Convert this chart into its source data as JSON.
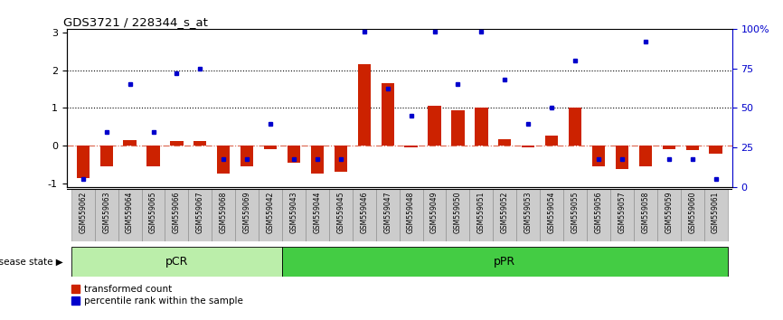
{
  "title": "GDS3721 / 228344_s_at",
  "samples": [
    "GSM559062",
    "GSM559063",
    "GSM559064",
    "GSM559065",
    "GSM559066",
    "GSM559067",
    "GSM559068",
    "GSM559069",
    "GSM559042",
    "GSM559043",
    "GSM559044",
    "GSM559045",
    "GSM559046",
    "GSM559047",
    "GSM559048",
    "GSM559049",
    "GSM559050",
    "GSM559051",
    "GSM559052",
    "GSM559053",
    "GSM559054",
    "GSM559055",
    "GSM559056",
    "GSM559057",
    "GSM559058",
    "GSM559059",
    "GSM559060",
    "GSM559061"
  ],
  "transformed_count": [
    -0.85,
    -0.55,
    0.15,
    -0.55,
    0.12,
    0.12,
    -0.75,
    -0.55,
    -0.08,
    -0.45,
    -0.75,
    -0.7,
    2.15,
    1.65,
    -0.05,
    1.05,
    0.95,
    1.0,
    0.18,
    -0.05,
    0.28,
    1.0,
    -0.55,
    -0.62,
    -0.55,
    -0.08,
    -0.12,
    -0.2
  ],
  "percentile_rank": [
    5,
    35,
    65,
    35,
    72,
    75,
    18,
    18,
    40,
    18,
    18,
    18,
    98,
    62,
    45,
    98,
    65,
    98,
    68,
    40,
    50,
    80,
    18,
    18,
    92,
    18,
    18,
    5
  ],
  "pcr_count": 9,
  "ppr_count": 19,
  "ylim": [
    -1.1,
    3.1
  ],
  "right_ylim": [
    0,
    100
  ],
  "yticks_left": [
    -1,
    0,
    1,
    2,
    3
  ],
  "yticks_right": [
    0,
    25,
    50,
    75,
    100
  ],
  "ytick_labels_right": [
    "0",
    "25",
    "50",
    "75",
    "100%"
  ],
  "bar_color": "#cc2200",
  "dot_color": "#0000cc",
  "pcr_color": "#bbeeaa",
  "ppr_color": "#44cc44",
  "legend_items": [
    "transformed count",
    "percentile rank within the sample"
  ]
}
